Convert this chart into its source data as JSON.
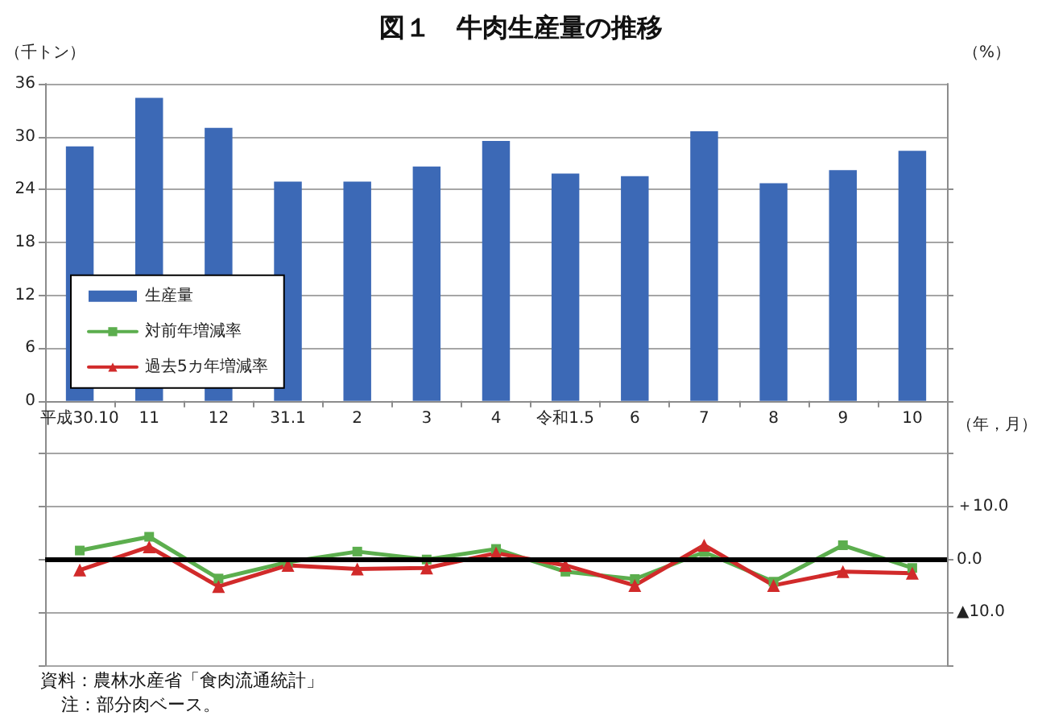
{
  "chart_data": {
    "type": "bar",
    "title": "図１　牛肉生産量の推移",
    "xlabel": "（年，月）",
    "ylabel": "（千トン）",
    "y2label": "（%）",
    "categories": [
      "平成30.10",
      "11",
      "12",
      "31.1",
      "2",
      "3",
      "4",
      "令和1.5",
      "6",
      "7",
      "8",
      "9",
      "10"
    ],
    "series": [
      {
        "name": "生産量",
        "color": "#3c69b6",
        "values": [
          28.9,
          34.4,
          31.0,
          24.9,
          24.9,
          26.6,
          29.5,
          25.8,
          25.5,
          30.6,
          24.7,
          26.2,
          28.4
        ]
      },
      {
        "name": "対前年増減率",
        "type": "line",
        "axis": "y2",
        "marker": "square",
        "color": "#5cae4e",
        "values": [
          1.7,
          4.3,
          -3.6,
          -0.5,
          1.5,
          0.0,
          2.0,
          -2.3,
          -3.7,
          1.4,
          -4.2,
          2.7,
          -1.6
        ]
      },
      {
        "name": "過去5カ年増減率",
        "type": "line",
        "axis": "y2",
        "marker": "triangle",
        "color": "#d12a2a",
        "values": [
          -2.0,
          2.4,
          -5.1,
          -1.1,
          -1.8,
          -1.6,
          1.2,
          -1.1,
          -4.9,
          2.7,
          -4.9,
          -2.3,
          -2.6
        ]
      }
    ],
    "ylim": [
      -30,
      36
    ],
    "yticks": [
      {
        "value": -30,
        "label": null
      },
      {
        "value": -24,
        "label": null
      },
      {
        "value": -18,
        "label": null
      },
      {
        "value": -12,
        "label": null
      },
      {
        "value": -6,
        "label": null
      },
      0,
      6,
      12,
      18,
      24,
      30,
      36
    ],
    "y2lim": [
      -20,
      90
    ],
    "y2ticks": [
      {
        "value": -20,
        "label": null
      },
      {
        "value": -10,
        "label": "▲10.0"
      },
      {
        "value": 0,
        "label": "0.0"
      },
      {
        "value": 10,
        "label": "＋10.0"
      },
      {
        "value": 20,
        "label": null
      },
      {
        "value": 30,
        "label": null
      },
      {
        "value": 40,
        "label": null
      },
      {
        "value": 50,
        "label": null
      },
      {
        "value": 60,
        "label": null
      },
      {
        "value": 70,
        "label": null
      }
    ],
    "grid": "y",
    "legend": "top left",
    "ref_lines": [
      {
        "axis": "y2",
        "value": 0,
        "color": "#000000"
      }
    ],
    "annotations": [
      "資料：農林水産省「食肉流通統計」",
      "注：部分肉ベース。"
    ]
  }
}
